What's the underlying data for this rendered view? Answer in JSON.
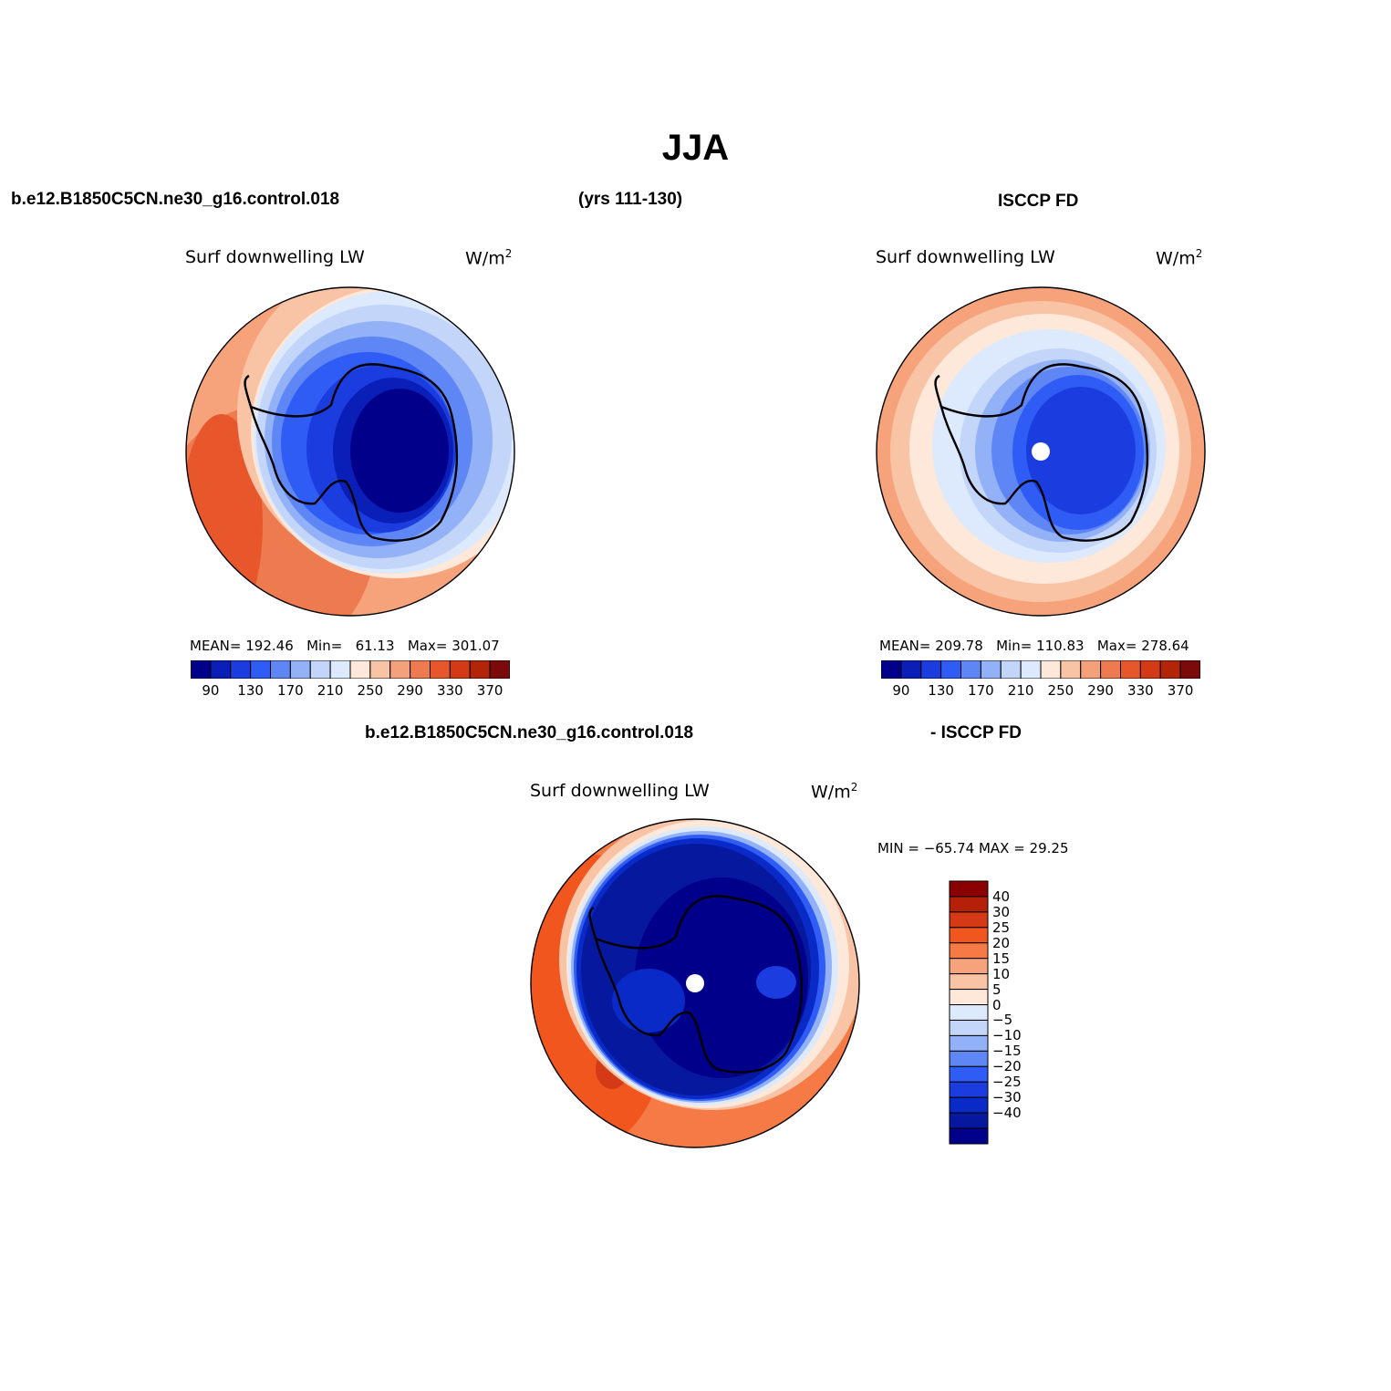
{
  "title": "JJA",
  "top_left_header": {
    "case": "b.e12.B1850C5CN.ne30_g16.control.018",
    "years": "(yrs 111-130)"
  },
  "top_right_header": {
    "obs": "ISCCP FD"
  },
  "bottom_header": {
    "case": "b.e12.B1850C5CN.ne30_g16.control.018",
    "obs": "- ISCCP FD"
  },
  "panels": {
    "model": {
      "variable": "Surf downwelling LW",
      "units": "W/m",
      "mean_label": "MEAN=",
      "mean": "192.46",
      "min_label": "Min=",
      "min": "61.13",
      "max_label": "Max=",
      "max": "301.07"
    },
    "obs": {
      "variable": "Surf downwelling LW",
      "units": "W/m",
      "mean_label": "MEAN=",
      "mean": "209.78",
      "min_label": "Min=",
      "min": "110.83",
      "max_label": "Max=",
      "max": "278.64"
    },
    "diff": {
      "variable": "Surf downwelling LW",
      "units": "W/m",
      "minmax": "MIN = −65.74 MAX =  29.25"
    }
  },
  "abs_colorbar": {
    "colors": [
      "#00008b",
      "#0a1fb8",
      "#1b3de0",
      "#2f5cf5",
      "#5f86f5",
      "#92b1f7",
      "#c3d6fa",
      "#dde9fc",
      "#fde8d9",
      "#f9c4a6",
      "#f4a07a",
      "#ee7a50",
      "#e8562b",
      "#d33a15",
      "#b32508",
      "#7d0a0a"
    ],
    "tick_labels": [
      "90",
      "130",
      "170",
      "210",
      "250",
      "290",
      "330",
      "370"
    ]
  },
  "diff_colorbar": {
    "colors_top_to_bottom": [
      "#8b0000",
      "#b42008",
      "#d33a15",
      "#f2561f",
      "#f57a45",
      "#f6a27a",
      "#f9c4a6",
      "#fde8d9",
      "#dde9fc",
      "#c3d6fa",
      "#92b1f7",
      "#5f86f5",
      "#2f5cf5",
      "#1b3de0",
      "#0a2ac8",
      "#06189e",
      "#00008b"
    ],
    "tick_labels": [
      "40",
      "30",
      "25",
      "20",
      "15",
      "10",
      "5",
      "0",
      "−5",
      "−10",
      "−15",
      "−20",
      "−25",
      "−30",
      "−40"
    ]
  }
}
